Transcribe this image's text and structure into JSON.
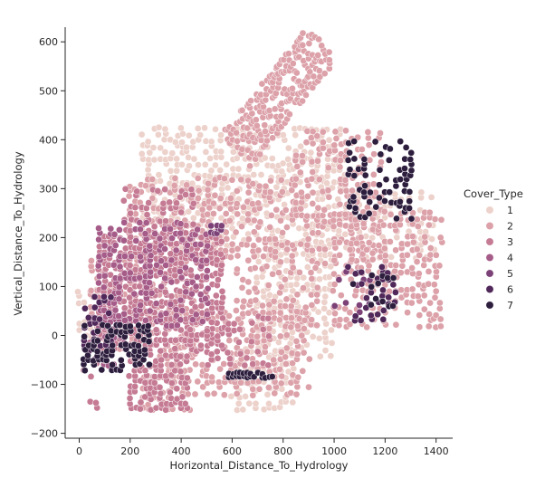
{
  "chart_data": {
    "type": "scatter",
    "title": "",
    "xlabel": "Horizontal_Distance_To_Hydrology",
    "ylabel": "Vertical_Distance_To_Hydrology",
    "xlim": [
      -55,
      1465
    ],
    "ylim": [
      -210,
      630
    ],
    "x_ticks": [
      0,
      200,
      400,
      600,
      800,
      1000,
      1200,
      1400
    ],
    "y_ticks": [
      -200,
      -100,
      0,
      100,
      200,
      300,
      400,
      500,
      600
    ],
    "grid": false,
    "legend": {
      "title": "Cover_Type",
      "placement": "right",
      "entries": [
        {
          "label": "1",
          "color": "#edd1cb"
        },
        {
          "label": "2",
          "color": "#dca1a9"
        },
        {
          "label": "3",
          "color": "#c57b94"
        },
        {
          "label": "4",
          "color": "#a65c89"
        },
        {
          "label": "5",
          "color": "#7c4278"
        },
        {
          "label": "6",
          "color": "#50285a"
        },
        {
          "label": "7",
          "color": "#2d1e3e"
        }
      ]
    },
    "series": [
      {
        "name": "1",
        "color": "#edd1cb",
        "clusters": [
          {
            "x": [
              250,
              1050
            ],
            "y": [
              180,
              430
            ],
            "density": 0.55,
            "step": 22
          },
          {
            "x": [
              700,
              1000
            ],
            "y": [
              -40,
              200
            ],
            "density": 0.55,
            "step": 22
          },
          {
            "x": [
              600,
              840
            ],
            "y": [
              -150,
              -20
            ],
            "density": 0.5,
            "step": 24
          },
          {
            "x": [
              1100,
              1400
            ],
            "y": [
              160,
              300
            ],
            "density": 0.45,
            "step": 24
          },
          {
            "x": [
              0,
              120
            ],
            "y": [
              0,
              100
            ],
            "density": 0.4,
            "step": 24
          }
        ]
      },
      {
        "name": "2",
        "color": "#dca1a9",
        "clusters": [
          {
            "x": [
              50,
              450
            ],
            "y": [
              -40,
              160
            ],
            "density": 0.35,
            "step": 22
          },
          {
            "x": [
              350,
              900
            ],
            "y": [
              -120,
              60
            ],
            "density": 0.45,
            "step": 22
          },
          {
            "x": [
              200,
              850
            ],
            "y": [
              150,
              330
            ],
            "density": 0.5,
            "step": 22
          },
          {
            "x": [
              850,
              1180
            ],
            "y": [
              150,
              420
            ],
            "density": 0.5,
            "step": 22
          },
          {
            "x": [
              1000,
              1420
            ],
            "y": [
              20,
              260
            ],
            "density": 0.5,
            "step": 22
          },
          {
            "x": [
              620,
              950
            ],
            "y": [
              20,
              150
            ],
            "density": 0.45,
            "step": 24
          },
          {
            "x": [
              250,
              440
            ],
            "y": [
              -150,
              -70
            ],
            "density": 0.5,
            "step": 20
          }
        ],
        "band": {
          "x0": 620,
          "y0": 380,
          "x1": 960,
          "y1": 600,
          "w": 90,
          "density": 0.6
        }
      },
      {
        "name": "3",
        "color": "#c57b94",
        "clusters": [
          {
            "x": [
              80,
              560
            ],
            "y": [
              -30,
              210
            ],
            "density": 0.7,
            "step": 20
          },
          {
            "x": [
              200,
              420
            ],
            "y": [
              -150,
              -40
            ],
            "density": 0.6,
            "step": 20
          },
          {
            "x": [
              180,
              450
            ],
            "y": [
              200,
              300
            ],
            "density": 0.5,
            "step": 22
          },
          {
            "x": [
              500,
              760
            ],
            "y": [
              -60,
              40
            ],
            "density": 0.35,
            "step": 22
          },
          {
            "x": [
              20,
              80
            ],
            "y": [
              -150,
              -40
            ],
            "density": 0.3,
            "step": 24
          }
        ]
      },
      {
        "name": "4",
        "color": "#a65c89",
        "clusters": [
          {
            "x": [
              80,
              500
            ],
            "y": [
              20,
              230
            ],
            "density": 0.35,
            "step": 20
          },
          {
            "x": [
              20,
              180
            ],
            "y": [
              -60,
              40
            ],
            "density": 0.3,
            "step": 20
          }
        ]
      },
      {
        "name": "5",
        "color": "#7c4278",
        "clusters": [
          {
            "x": [
              1000,
              1150
            ],
            "y": [
              50,
              130
            ],
            "density": 0.25,
            "step": 24
          },
          {
            "x": [
              500,
              560
            ],
            "y": [
              210,
              230
            ],
            "density": 0.5,
            "step": 14
          }
        ]
      },
      {
        "name": "6",
        "color": "#50285a",
        "clusters": [
          {
            "x": [
              20,
              120
            ],
            "y": [
              -30,
              90
            ],
            "density": 0.35,
            "step": 20
          },
          {
            "x": [
              1060,
              1240
            ],
            "y": [
              30,
              140
            ],
            "density": 0.3,
            "step": 22
          }
        ]
      },
      {
        "name": "7",
        "color": "#2d1e3e",
        "clusters": [
          {
            "x": [
              20,
              280
            ],
            "y": [
              -70,
              20
            ],
            "density": 0.55,
            "step": 18
          },
          {
            "x": [
              590,
              770
            ],
            "y": [
              -85,
              -70
            ],
            "density": 0.8,
            "step": 14
          },
          {
            "x": [
              1060,
              1300
            ],
            "y": [
              240,
              400
            ],
            "density": 0.4,
            "step": 20
          },
          {
            "x": [
              1080,
              1240
            ],
            "y": [
              60,
              130
            ],
            "density": 0.3,
            "step": 22
          }
        ]
      }
    ]
  }
}
